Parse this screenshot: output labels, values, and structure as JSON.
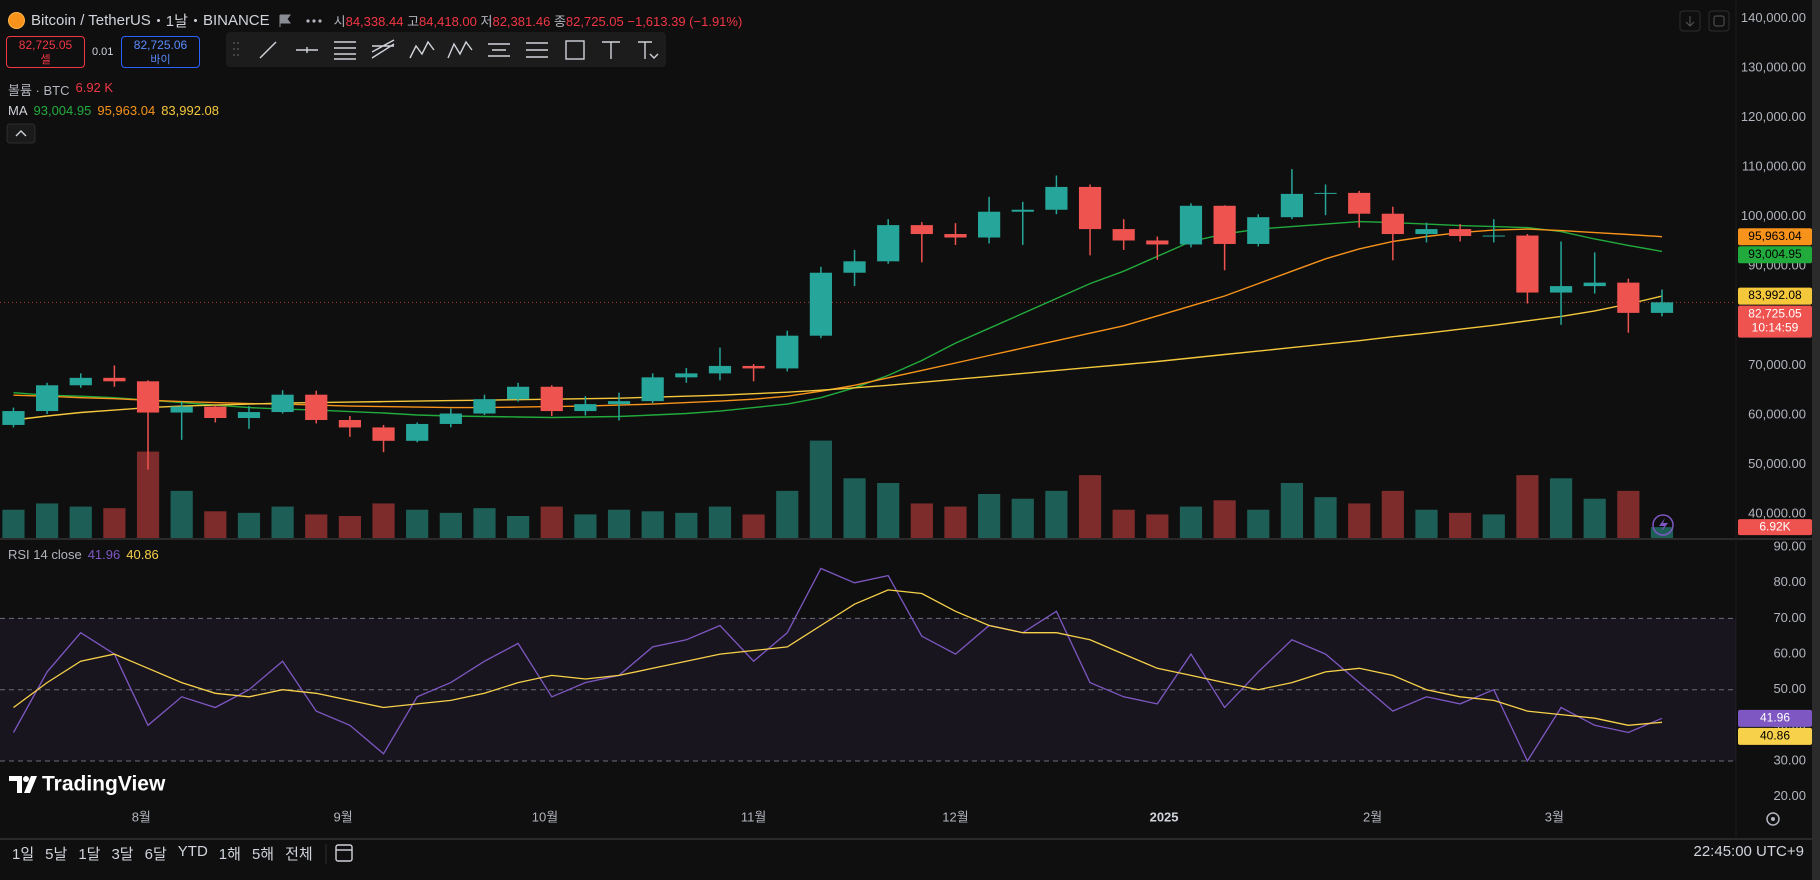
{
  "header": {
    "symbol": "Bitcoin / TetherUS",
    "interval": "1날",
    "exchange": "BINANCE",
    "ohlc": [
      {
        "label": "시",
        "value": "84,338.44"
      },
      {
        "label": "고",
        "value": "84,418.00"
      },
      {
        "label": "저",
        "value": "82,381.46"
      },
      {
        "label": "종",
        "value": "82,725.05"
      }
    ],
    "change": "−1,613.39 (−1.91%)"
  },
  "trade": {
    "sell_price": "82,725.05",
    "sell_label": "셀",
    "spread": "0.01",
    "buy_price": "82,725.06",
    "buy_label": "바이"
  },
  "logo": "TradingView",
  "range_buttons": [
    "1일",
    "5날",
    "1달",
    "3달",
    "6달",
    "YTD",
    "1해",
    "5해",
    "전체"
  ],
  "clock": "22:45:00 UTC+9",
  "chart_data": [
    {
      "type": "candlestick",
      "x": [
        2,
        7,
        12,
        17,
        22,
        27,
        32,
        37,
        42,
        47,
        52,
        57,
        62,
        67,
        72,
        77,
        82,
        87,
        92,
        97,
        102,
        107,
        112,
        117,
        122,
        127,
        132,
        137,
        142,
        147,
        152,
        157,
        162,
        167,
        172,
        177,
        182,
        187,
        192,
        197,
        202,
        207,
        212,
        217,
        222,
        227,
        232,
        237,
        242,
        247
      ],
      "xlim": [
        0,
        258
      ],
      "open": [
        58000,
        60800,
        66000,
        67500,
        66800,
        60500,
        61700,
        59400,
        60600,
        64100,
        59000,
        57500,
        54800,
        58200,
        60300,
        63200,
        65700,
        60800,
        62200,
        62800,
        67600,
        68400,
        69900,
        69400,
        76000,
        88700,
        91000,
        98300,
        96500,
        95800,
        101000,
        101400,
        106000,
        97500,
        95200,
        94400,
        102200,
        94500,
        99900,
        104600,
        104800,
        100600,
        96500,
        97500,
        96100,
        96200,
        84700,
        86000,
        86700,
        80600
      ],
      "high": [
        61500,
        66500,
        68400,
        70000,
        67000,
        62700,
        61800,
        61800,
        65000,
        64900,
        59800,
        58000,
        58500,
        61300,
        64100,
        66500,
        66000,
        63800,
        64500,
        68400,
        69500,
        73600,
        70300,
        77000,
        89900,
        93300,
        99500,
        98900,
        98700,
        104000,
        103000,
        108300,
        106500,
        99500,
        96000,
        102700,
        102300,
        100500,
        109600,
        106500,
        105200,
        102000,
        98800,
        98500,
        99500,
        96500,
        95000,
        92800,
        87500,
        85300
      ],
      "low": [
        57500,
        60200,
        65500,
        65700,
        49000,
        55000,
        58500,
        57200,
        60300,
        58300,
        55600,
        52500,
        54500,
        57500,
        60000,
        62700,
        59800,
        59900,
        58900,
        62400,
        66500,
        67000,
        66800,
        68800,
        75500,
        86000,
        90500,
        90800,
        94300,
        94600,
        94300,
        100500,
        92200,
        93300,
        91300,
        93800,
        89200,
        94000,
        99500,
        100300,
        97800,
        91200,
        94800,
        95000,
        94800,
        82500,
        78200,
        84500,
        76600,
        79900
      ],
      "close": [
        60800,
        66000,
        67500,
        66800,
        60500,
        61700,
        59400,
        60600,
        64100,
        59000,
        57500,
        54800,
        58200,
        60300,
        63200,
        65700,
        60800,
        62200,
        62800,
        67600,
        68400,
        69900,
        69400,
        76000,
        88700,
        91000,
        98300,
        96500,
        95800,
        101000,
        101400,
        106000,
        97500,
        95200,
        94400,
        102200,
        94500,
        99900,
        104600,
        104800,
        100600,
        96500,
        97500,
        96100,
        96200,
        84700,
        86000,
        86700,
        80600,
        82725.05
      ],
      "up_color": "#26a69a",
      "down_color": "#ef5350",
      "ylim": [
        35200,
        143700
      ],
      "yticks": [
        {
          "value": 140000,
          "label": "140,000.00"
        },
        {
          "value": 130000,
          "label": "130,000.00"
        },
        {
          "value": 120000,
          "label": "120,000.00"
        },
        {
          "value": 110000,
          "label": "110,000.00"
        },
        {
          "value": 100000,
          "label": "100,000.00"
        },
        {
          "value": 90000,
          "label": "90,000.00"
        },
        {
          "value": 80000,
          "label": "80,000.00"
        },
        {
          "value": 70000,
          "label": "70,000.00"
        },
        {
          "value": 60000,
          "label": "60,000.00"
        },
        {
          "value": 50000,
          "label": "50,000.00"
        },
        {
          "value": 40000,
          "label": "40,000.00"
        }
      ],
      "grid": false,
      "last_price": {
        "label": "82,725.05",
        "countdown": "10:14:59"
      },
      "volume": {
        "legend_title": "볼륨 · BTC",
        "legend_value": "6.92 K",
        "axis_label": "6.92K",
        "ylim": [
          0,
          70
        ],
        "up_color": "#1d5e57",
        "down_color": "#7d2b2b",
        "values": [
          18,
          22,
          20,
          19,
          55,
          30,
          17,
          16,
          20,
          15,
          14,
          22,
          18,
          16,
          19,
          14,
          20,
          15,
          18,
          17,
          16,
          20,
          15,
          30,
          62,
          38,
          35,
          22,
          20,
          28,
          25,
          30,
          40,
          18,
          15,
          20,
          24,
          18,
          35,
          26,
          22,
          30,
          18,
          16,
          15,
          40,
          38,
          25,
          30,
          6.92
        ]
      },
      "ma_legend_title": "MA",
      "moving_averages": [
        {
          "color": "#22ab3d",
          "label": "93,004.95",
          "values": [
            64500,
            64000,
            63800,
            63500,
            63000,
            62500,
            62000,
            61500,
            61200,
            61000,
            60700,
            60400,
            60000,
            59800,
            59700,
            59600,
            59500,
            59600,
            59700,
            60000,
            60300,
            60800,
            61500,
            62200,
            63500,
            65500,
            68000,
            71000,
            74500,
            77500,
            80500,
            83500,
            86500,
            89000,
            92000,
            95000,
            96500,
            97500,
            98000,
            98500,
            99000,
            98800,
            98500,
            98200,
            98000,
            97800,
            97000,
            95500,
            94200,
            93004.95
          ]
        },
        {
          "color": "#f7931a",
          "label": "95,963.04",
          "values": [
            64000,
            63800,
            63500,
            63300,
            63000,
            62700,
            62500,
            62300,
            62200,
            62000,
            61800,
            61700,
            61600,
            61500,
            61500,
            61600,
            61700,
            61800,
            62000,
            62200,
            62500,
            62800,
            63200,
            63800,
            64800,
            66000,
            67500,
            69000,
            70500,
            72000,
            73500,
            75000,
            76500,
            78000,
            80000,
            82000,
            84000,
            86500,
            89000,
            91500,
            93500,
            95000,
            96000,
            96800,
            97300,
            97500,
            97200,
            96800,
            96400,
            95963.04
          ]
        },
        {
          "color": "#f5c83c",
          "label": "83,992.08",
          "values": [
            59000,
            59800,
            60500,
            61000,
            61500,
            61800,
            62000,
            62200,
            62400,
            62500,
            62600,
            62700,
            62800,
            62900,
            63000,
            63100,
            63200,
            63300,
            63400,
            63600,
            63800,
            64000,
            64300,
            64600,
            65000,
            65500,
            66000,
            66600,
            67200,
            67800,
            68400,
            69000,
            69600,
            70200,
            70800,
            71500,
            72200,
            72900,
            73600,
            74300,
            75000,
            75800,
            76500,
            77300,
            78100,
            79000,
            79900,
            81000,
            82400,
            83992.08
          ]
        }
      ]
    },
    {
      "type": "line",
      "legend_title": "RSI 14 close",
      "x": [
        2,
        7,
        12,
        17,
        22,
        27,
        32,
        37,
        42,
        47,
        52,
        57,
        62,
        67,
        72,
        77,
        82,
        87,
        92,
        97,
        102,
        107,
        112,
        117,
        122,
        127,
        132,
        137,
        142,
        147,
        152,
        157,
        162,
        167,
        172,
        177,
        182,
        187,
        192,
        197,
        202,
        207,
        212,
        217,
        222,
        227,
        232,
        237,
        242,
        247
      ],
      "xlim": [
        0,
        258
      ],
      "xticks": [
        {
          "value": 21,
          "label": "8월"
        },
        {
          "value": 51,
          "label": "9월"
        },
        {
          "value": 81,
          "label": "10월"
        },
        {
          "value": 112,
          "label": "11월"
        },
        {
          "value": 142,
          "label": "12월"
        },
        {
          "value": 173,
          "label": "2025"
        },
        {
          "value": 204,
          "label": "2월"
        },
        {
          "value": 231,
          "label": "3월"
        }
      ],
      "ylim": [
        14,
        92
      ],
      "yticks": [
        {
          "value": 90,
          "label": "90.00"
        },
        {
          "value": 80,
          "label": "80.00"
        },
        {
          "value": 70,
          "label": "70.00"
        },
        {
          "value": 60,
          "label": "60.00"
        },
        {
          "value": 50,
          "label": "50.00"
        },
        {
          "value": 40,
          "label": "40.00"
        },
        {
          "value": 30,
          "label": "30.00"
        },
        {
          "value": 20,
          "label": "20.00"
        }
      ],
      "bands": [
        70,
        50,
        30
      ],
      "band_color": "#7e57c2",
      "series": [
        {
          "color": "#7e57c2",
          "values": [
            38,
            55,
            66,
            60,
            40,
            48,
            45,
            50,
            58,
            44,
            40,
            32,
            48,
            52,
            58,
            63,
            48,
            52,
            54,
            62,
            64,
            68,
            58,
            66,
            84,
            80,
            82,
            65,
            60,
            68,
            66,
            72,
            52,
            48,
            46,
            60,
            45,
            55,
            64,
            60,
            52,
            44,
            48,
            46,
            50,
            30,
            45,
            40,
            38,
            41.96
          ]
        },
        {
          "color": "#f7d14a",
          "values": [
            45,
            52,
            58,
            60,
            56,
            52,
            49,
            48,
            50,
            49,
            47,
            45,
            46,
            47,
            49,
            52,
            54,
            53,
            54,
            56,
            58,
            60,
            61,
            62,
            68,
            74,
            78,
            77,
            72,
            68,
            66,
            66,
            64,
            60,
            56,
            54,
            52,
            50,
            52,
            55,
            56,
            54,
            50,
            48,
            47,
            44,
            43,
            42,
            40,
            40.86
          ]
        }
      ]
    }
  ]
}
